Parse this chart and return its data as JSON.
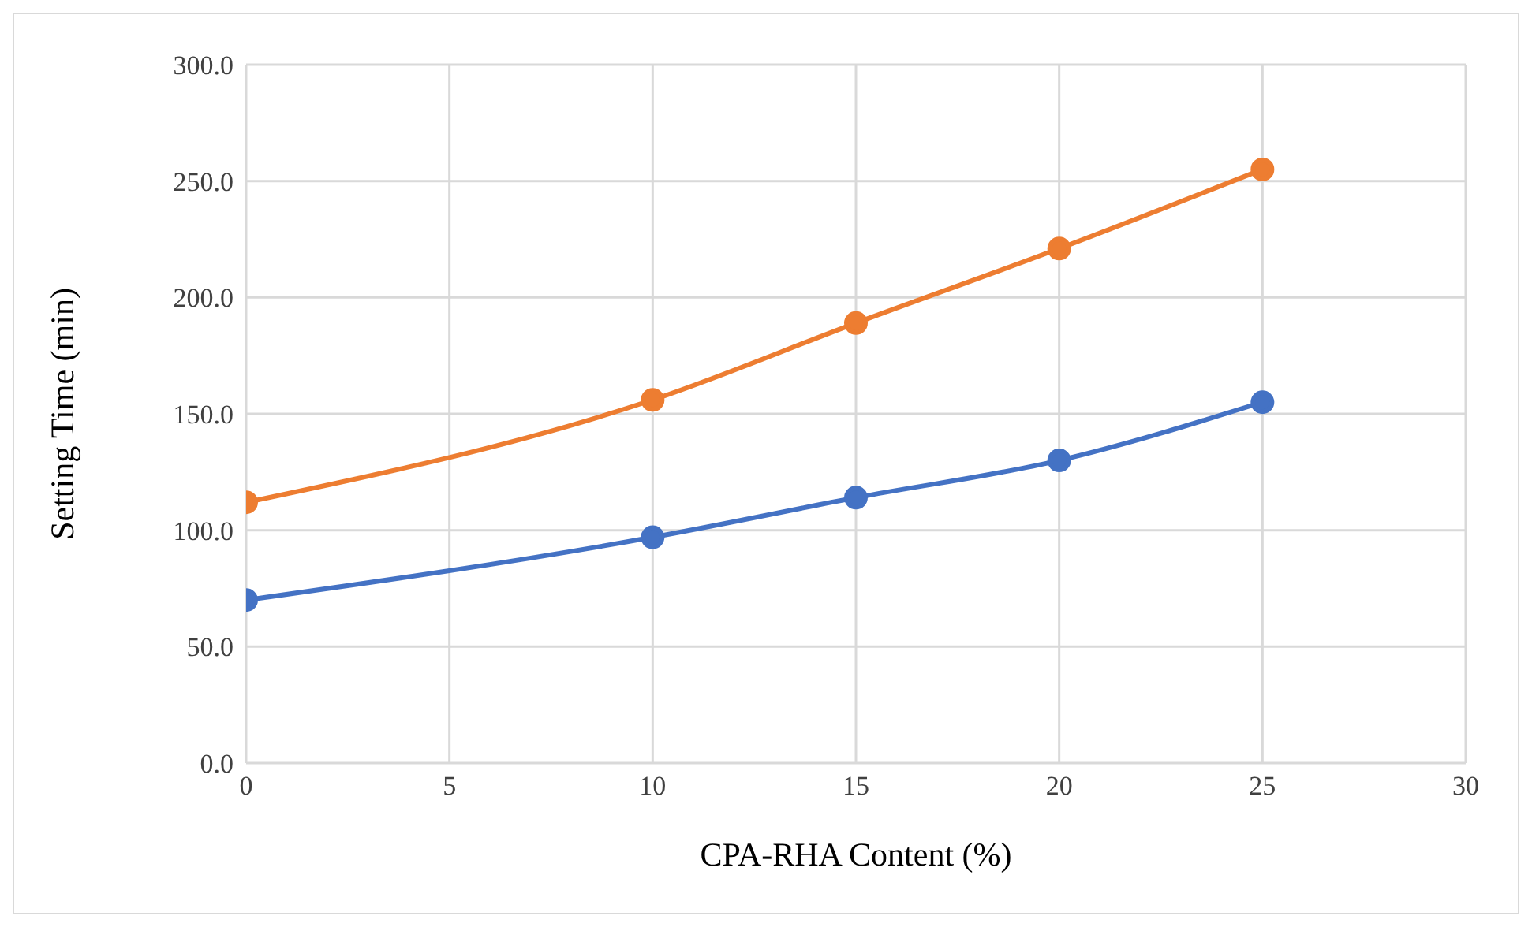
{
  "chart_data": {
    "type": "line",
    "xlabel": "CPA-RHA Content (%)",
    "ylabel": "Setting Time (min)",
    "x": [
      0,
      10,
      15,
      20,
      25
    ],
    "series": [
      {
        "color": "#4472c4",
        "values": [
          70,
          97,
          114,
          130,
          155
        ]
      },
      {
        "color": "#ed7d31",
        "values": [
          112,
          156,
          189,
          221,
          255
        ]
      }
    ],
    "xlim": [
      0,
      30
    ],
    "xticks": [
      0,
      5,
      10,
      15,
      20,
      25,
      30
    ],
    "ylim": [
      0,
      300
    ],
    "yticks": [
      {
        "value": 0,
        "label": "0.0"
      },
      {
        "value": 50,
        "label": "50.0"
      },
      {
        "value": 100,
        "label": "100.0"
      },
      {
        "value": 150,
        "label": "150.0"
      },
      {
        "value": 200,
        "label": "200.0"
      },
      {
        "value": 250,
        "label": "250.0"
      },
      {
        "value": 300,
        "label": "300.0"
      }
    ],
    "grid": true,
    "legend": false,
    "marker": "circle",
    "line_style": "solid"
  }
}
